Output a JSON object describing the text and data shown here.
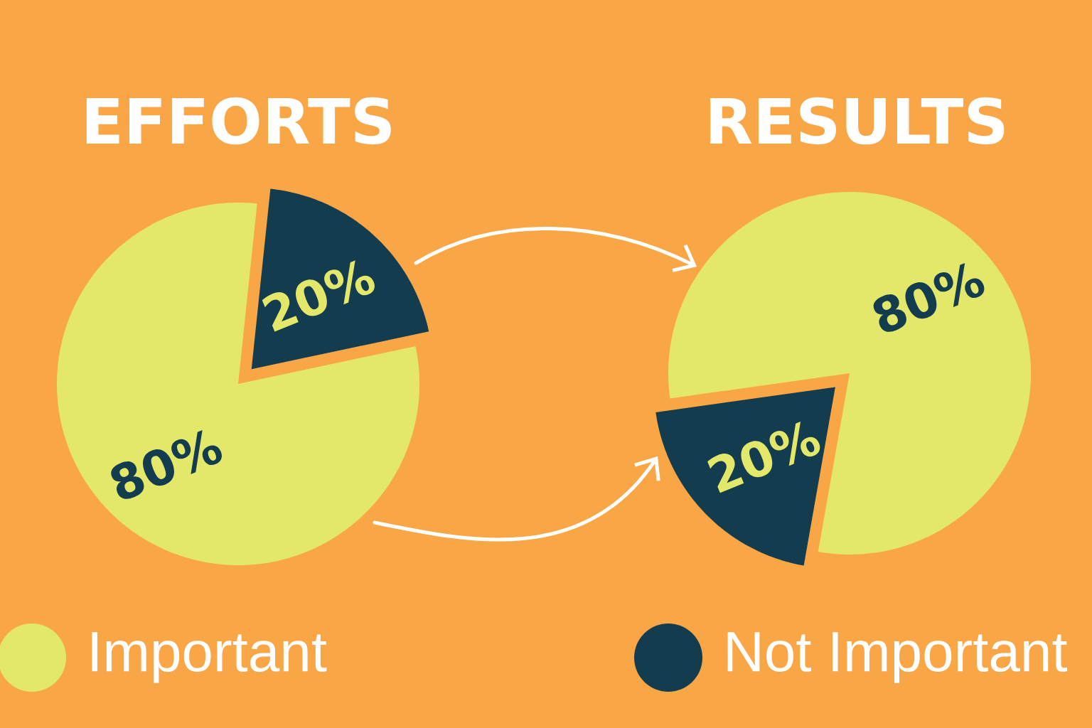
{
  "chart_data": [
    {
      "type": "pie",
      "title": "EFFORTS",
      "categories": [
        "Important",
        "Not Important"
      ],
      "values": [
        80,
        20
      ],
      "colors": [
        "#e3e86a",
        "#133c4f"
      ],
      "value_labels": [
        "80%",
        "20%"
      ],
      "legend": "bottom"
    },
    {
      "type": "pie",
      "title": "RESULTS",
      "categories": [
        null,
        null
      ],
      "values": [
        80,
        20
      ],
      "colors": [
        "#e3e86a",
        "#133c4f"
      ],
      "value_labels": [
        "80%",
        "20%"
      ]
    }
  ]
}
